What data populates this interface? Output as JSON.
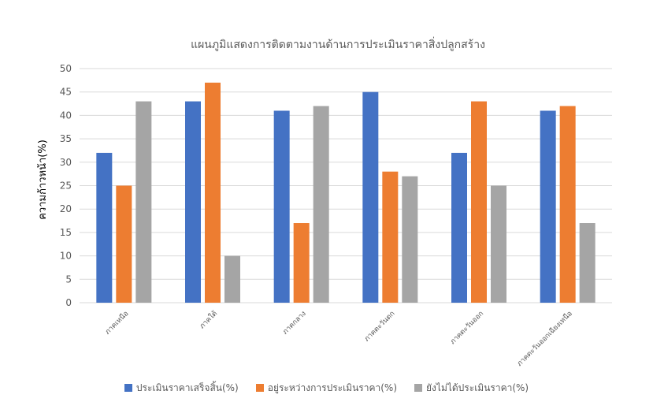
{
  "chart_data": {
    "type": "bar",
    "title": "แผนภูมิแสดงการติดตามงานด้านการประเมินราคาสิ่งปลูกสร้าง",
    "xlabel": "",
    "ylabel": "ความก้าวหน้า(%)",
    "ylim": [
      0,
      50
    ],
    "yticks": [
      0,
      5,
      10,
      15,
      20,
      25,
      30,
      35,
      40,
      45,
      50
    ],
    "grid": true,
    "legend_position": "bottom",
    "categories": [
      "ภาคเหนือ",
      "ภาคใต้",
      "ภาคกลาง",
      "ภาคตะวันตก",
      "ภาคตะวันออก",
      "ภาคตะวันออกเฉียงเหนือ"
    ],
    "series": [
      {
        "name": "ประเมินราคาเสร็จสิ้น(%)",
        "color": "#4472C4",
        "values": [
          32,
          43,
          41,
          45,
          32,
          41
        ]
      },
      {
        "name": "อยู่ระหว่างการประเมินราคา(%)",
        "color": "#ED7D31",
        "values": [
          25,
          47,
          17,
          28,
          43,
          42
        ]
      },
      {
        "name": "ยังไม่ได้ประเมินราคา(%)",
        "color": "#A5A5A5",
        "values": [
          43,
          10,
          42,
          27,
          25,
          17
        ]
      }
    ]
  }
}
